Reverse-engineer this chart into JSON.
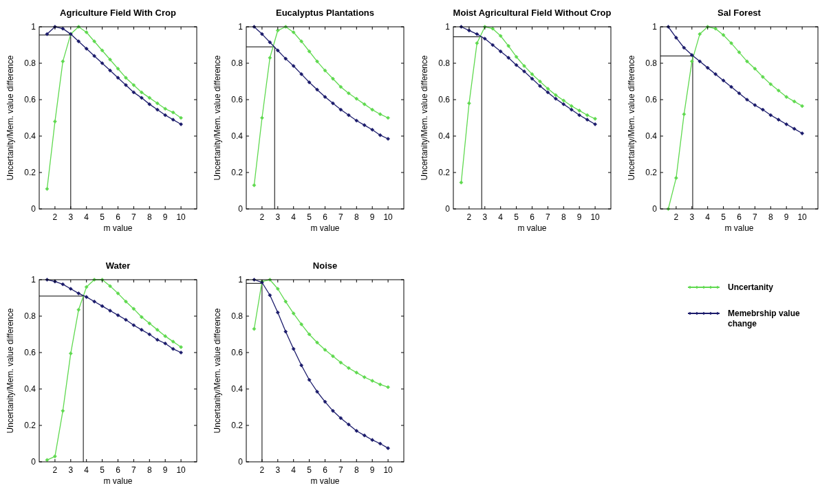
{
  "chart_data": [
    {
      "type": "line",
      "title": "Agriculture Field With Crop",
      "xlabel": "m value",
      "ylabel": "Uncertanity/Mem. value difference",
      "x": [
        1.5,
        2,
        2.5,
        3,
        3.5,
        4,
        4.5,
        5,
        5.5,
        6,
        6.5,
        7,
        7.5,
        8,
        8.5,
        9,
        9.5,
        10
      ],
      "xlim": [
        1,
        11
      ],
      "xticks": [
        2,
        3,
        4,
        5,
        6,
        7,
        8,
        9,
        10
      ],
      "ylim": [
        0,
        1
      ],
      "yticks": [
        0,
        0.2,
        0.4,
        0.6,
        0.8,
        1
      ],
      "marker": "diamond",
      "line_style": "solid",
      "grid": false,
      "legend": false,
      "series": [
        {
          "color": "#5fd94f",
          "values": [
            0.11,
            0.48,
            0.81,
            0.96,
            1.0,
            0.97,
            0.92,
            0.87,
            0.82,
            0.77,
            0.72,
            0.68,
            0.64,
            0.61,
            0.58,
            0.55,
            0.53,
            0.5
          ]
        },
        {
          "color": "#1b1b6b",
          "values": [
            0.96,
            1.0,
            0.99,
            0.96,
            0.92,
            0.88,
            0.84,
            0.8,
            0.76,
            0.72,
            0.68,
            0.64,
            0.61,
            0.575,
            0.545,
            0.515,
            0.49,
            0.465
          ]
        }
      ],
      "ref_lines": [
        {
          "axis": "x",
          "value": 3,
          "color": "#000000"
        },
        {
          "axis": "y",
          "value": 0.955,
          "color": "#000000"
        }
      ]
    },
    {
      "type": "line",
      "title": "Eucalyptus Plantations",
      "xlabel": "m value",
      "ylabel": "Uncertanity/Mem. value difference",
      "x": [
        1.5,
        2,
        2.5,
        3,
        3.5,
        4,
        4.5,
        5,
        5.5,
        6,
        6.5,
        7,
        7.5,
        8,
        8.5,
        9,
        9.5,
        10
      ],
      "xlim": [
        1,
        11
      ],
      "xticks": [
        2,
        3,
        4,
        5,
        6,
        7,
        8,
        9,
        10
      ],
      "ylim": [
        0,
        1
      ],
      "yticks": [
        0,
        0.2,
        0.4,
        0.6,
        0.8,
        1
      ],
      "marker": "diamond",
      "line_style": "solid",
      "grid": false,
      "legend": false,
      "series": [
        {
          "color": "#5fd94f",
          "values": [
            0.13,
            0.5,
            0.83,
            0.98,
            1.0,
            0.97,
            0.92,
            0.865,
            0.81,
            0.76,
            0.715,
            0.67,
            0.635,
            0.605,
            0.575,
            0.545,
            0.52,
            0.5
          ]
        },
        {
          "color": "#1b1b6b",
          "values": [
            1.0,
            0.96,
            0.915,
            0.87,
            0.825,
            0.785,
            0.74,
            0.695,
            0.655,
            0.615,
            0.58,
            0.545,
            0.515,
            0.485,
            0.46,
            0.435,
            0.405,
            0.385
          ]
        }
      ],
      "ref_lines": [
        {
          "axis": "x",
          "value": 2.8,
          "color": "#000000"
        },
        {
          "axis": "y",
          "value": 0.89,
          "color": "#000000"
        }
      ]
    },
    {
      "type": "line",
      "title": "Moist Agricultural Field Without Crop",
      "xlabel": "m value",
      "ylabel": "Uncertanity/Mem. value difference",
      "x": [
        1.5,
        2,
        2.5,
        3,
        3.5,
        4,
        4.5,
        5,
        5.5,
        6,
        6.5,
        7,
        7.5,
        8,
        8.5,
        9,
        9.5,
        10
      ],
      "xlim": [
        1,
        11
      ],
      "xticks": [
        2,
        3,
        4,
        5,
        6,
        7,
        8,
        9,
        10
      ],
      "ylim": [
        0,
        1
      ],
      "yticks": [
        0,
        0.2,
        0.4,
        0.6,
        0.8,
        1
      ],
      "marker": "diamond",
      "line_style": "solid",
      "grid": false,
      "legend": false,
      "series": [
        {
          "color": "#5fd94f",
          "values": [
            0.145,
            0.58,
            0.91,
            1.0,
            0.99,
            0.95,
            0.895,
            0.835,
            0.785,
            0.74,
            0.7,
            0.66,
            0.625,
            0.595,
            0.565,
            0.54,
            0.515,
            0.495
          ]
        },
        {
          "color": "#1b1b6b",
          "values": [
            1.0,
            0.98,
            0.96,
            0.935,
            0.9,
            0.865,
            0.83,
            0.79,
            0.755,
            0.715,
            0.675,
            0.64,
            0.605,
            0.575,
            0.545,
            0.515,
            0.49,
            0.465
          ]
        }
      ],
      "ref_lines": [
        {
          "axis": "x",
          "value": 2.8,
          "color": "#000000"
        },
        {
          "axis": "y",
          "value": 0.945,
          "color": "#000000"
        }
      ]
    },
    {
      "type": "line",
      "title": "Sal Forest",
      "xlabel": "m value",
      "ylabel": "Uncertanity/Mem. value difference",
      "x": [
        1.5,
        2,
        2.5,
        3,
        3.5,
        4,
        4.5,
        5,
        5.5,
        6,
        6.5,
        7,
        7.5,
        8,
        8.5,
        9,
        9.5,
        10
      ],
      "xlim": [
        1,
        11
      ],
      "xticks": [
        2,
        3,
        4,
        5,
        6,
        7,
        8,
        9,
        10
      ],
      "ylim": [
        0,
        1
      ],
      "yticks": [
        0,
        0.2,
        0.4,
        0.6,
        0.8,
        1
      ],
      "marker": "diamond",
      "line_style": "solid",
      "grid": false,
      "legend": false,
      "series": [
        {
          "color": "#5fd94f",
          "values": [
            0.0,
            0.17,
            0.52,
            0.81,
            0.96,
            1.0,
            0.99,
            0.955,
            0.91,
            0.86,
            0.81,
            0.77,
            0.725,
            0.685,
            0.65,
            0.615,
            0.59,
            0.565
          ]
        },
        {
          "color": "#1b1b6b",
          "values": [
            1.0,
            0.94,
            0.885,
            0.845,
            0.81,
            0.775,
            0.74,
            0.705,
            0.67,
            0.635,
            0.6,
            0.57,
            0.545,
            0.515,
            0.49,
            0.465,
            0.44,
            0.415
          ]
        }
      ],
      "ref_lines": [
        {
          "axis": "x",
          "value": 3.05,
          "color": "#000000"
        },
        {
          "axis": "y",
          "value": 0.84,
          "color": "#000000"
        }
      ]
    },
    {
      "type": "line",
      "title": "Water",
      "xlabel": "m value",
      "ylabel": "Uncertanity/Mem. value difference",
      "x": [
        1.5,
        2,
        2.5,
        3,
        3.5,
        4,
        4.5,
        5,
        5.5,
        6,
        6.5,
        7,
        7.5,
        8,
        8.5,
        9,
        9.5,
        10
      ],
      "xlim": [
        1,
        11
      ],
      "xticks": [
        2,
        3,
        4,
        5,
        6,
        7,
        8,
        9,
        10
      ],
      "ylim": [
        0,
        1
      ],
      "yticks": [
        0,
        0.2,
        0.4,
        0.6,
        0.8,
        1
      ],
      "marker": "diamond",
      "line_style": "solid",
      "grid": false,
      "legend": false,
      "series": [
        {
          "color": "#5fd94f",
          "values": [
            0.01,
            0.03,
            0.28,
            0.595,
            0.835,
            0.96,
            1.0,
            1.0,
            0.965,
            0.925,
            0.88,
            0.84,
            0.795,
            0.76,
            0.725,
            0.69,
            0.66,
            0.63
          ]
        },
        {
          "color": "#1b1b6b",
          "values": [
            1.0,
            0.99,
            0.975,
            0.95,
            0.925,
            0.905,
            0.88,
            0.855,
            0.83,
            0.805,
            0.78,
            0.75,
            0.725,
            0.7,
            0.67,
            0.65,
            0.62,
            0.6
          ]
        }
      ],
      "ref_lines": [
        {
          "axis": "x",
          "value": 3.8,
          "color": "#000000"
        },
        {
          "axis": "y",
          "value": 0.91,
          "color": "#000000"
        }
      ]
    },
    {
      "type": "line",
      "title": "Noise",
      "xlabel": "m value",
      "ylabel": "Uncertanity/Mem. value difference",
      "x": [
        1.5,
        2,
        2.5,
        3,
        3.5,
        4,
        4.5,
        5,
        5.5,
        6,
        6.5,
        7,
        7.5,
        8,
        8.5,
        9,
        9.5,
        10
      ],
      "xlim": [
        1,
        11
      ],
      "xticks": [
        2,
        3,
        4,
        5,
        6,
        7,
        8,
        9,
        10
      ],
      "ylim": [
        0,
        1
      ],
      "yticks": [
        0,
        0.2,
        0.4,
        0.6,
        0.8,
        1
      ],
      "marker": "diamond",
      "line_style": "solid",
      "grid": false,
      "legend": "right",
      "series": [
        {
          "name": "Uncertanity",
          "color": "#5fd94f",
          "values": [
            0.73,
            0.99,
            1.0,
            0.95,
            0.88,
            0.815,
            0.755,
            0.7,
            0.655,
            0.615,
            0.58,
            0.545,
            0.515,
            0.49,
            0.465,
            0.445,
            0.425,
            0.41
          ]
        },
        {
          "name": "Memebrship value change",
          "color": "#1b1b6b",
          "values": [
            1.0,
            0.985,
            0.915,
            0.82,
            0.715,
            0.62,
            0.53,
            0.45,
            0.385,
            0.33,
            0.28,
            0.24,
            0.205,
            0.17,
            0.145,
            0.12,
            0.1,
            0.075
          ]
        }
      ],
      "ref_lines": [
        {
          "axis": "x",
          "value": 2.0,
          "color": "#000000"
        },
        {
          "axis": "y",
          "value": 0.98,
          "color": "#000000"
        }
      ]
    }
  ]
}
